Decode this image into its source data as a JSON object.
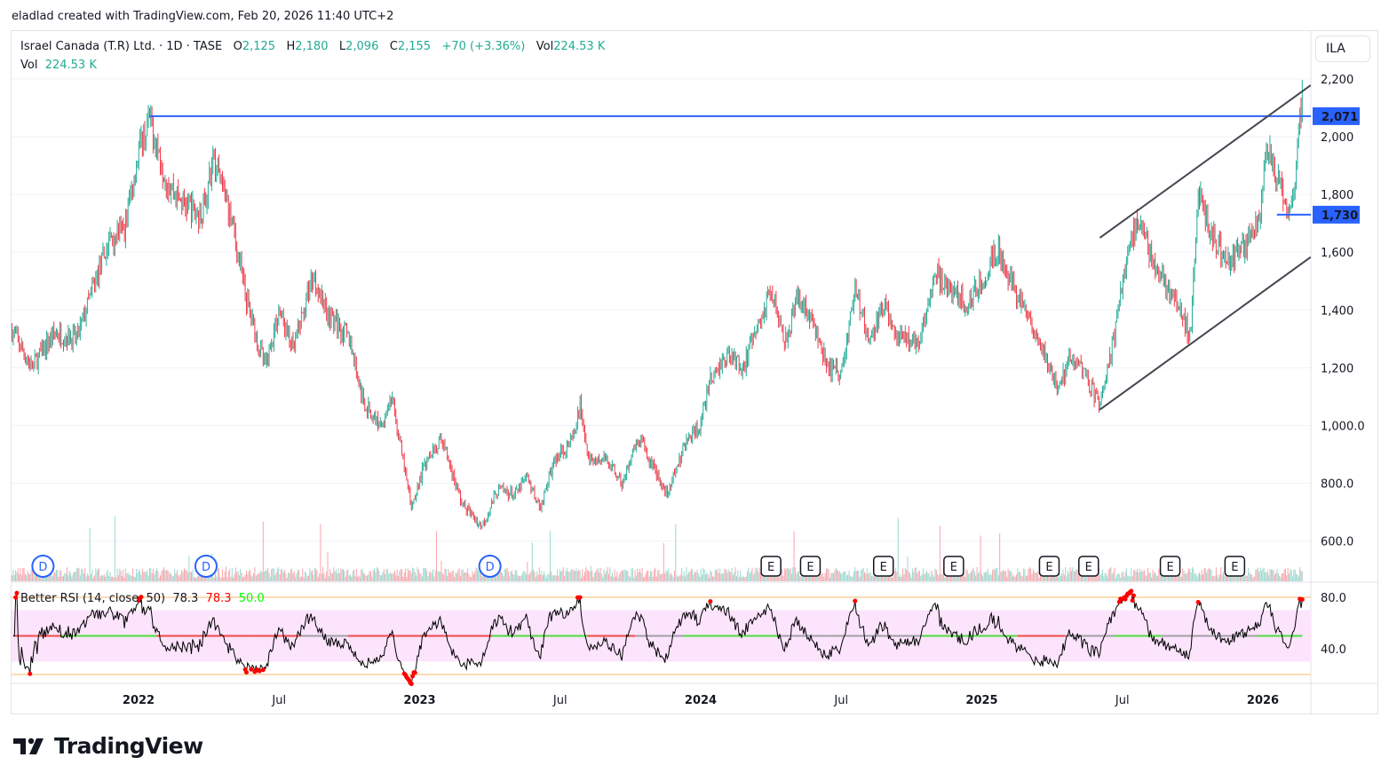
{
  "credit": "eladlad created with TradingView.com, Feb 20, 2026 11:40 UTC+2",
  "legend": {
    "symbol": "Israel Canada (T.R) Ltd. · 1D · TASE",
    "o_label": "O",
    "o": "2,125",
    "h_label": "H",
    "h": "2,180",
    "l_label": "L",
    "l": "2,096",
    "c_label": "C",
    "c": "2,155",
    "change": "+70 (+3.36%)",
    "vol_label": "Vol",
    "vol": "224.53 K"
  },
  "vol_legend": {
    "label": "Vol",
    "value": "224.53 K"
  },
  "rsi_legend": {
    "name": "Better RSI (14, close, 50)",
    "v1": "78.3",
    "v2": "78.3",
    "v3": "50.0"
  },
  "currency": "ILA",
  "logo": "TradingView",
  "colors": {
    "up": "#22ab94",
    "down": "#f23645",
    "line": "#2962ff",
    "trend": "#434651"
  },
  "chart_data": {
    "type": "candlestick",
    "title": "Israel Canada (T.R) Ltd. · 1D · TASE",
    "ylim": [
      500,
      2260
    ],
    "y_ticks": [
      "2,200",
      "2,000",
      "1,800",
      "1,600",
      "1,400",
      "1,200",
      "1,000.0",
      "800.0",
      "600.0"
    ],
    "y_tick_values": [
      2200,
      2000,
      1800,
      1600,
      1400,
      1200,
      1000,
      800,
      600
    ],
    "x_ticks": [
      {
        "label": "2022",
        "t": 2022.0,
        "bold": true
      },
      {
        "label": "Jul",
        "t": 2022.5
      },
      {
        "label": "2023",
        "t": 2023.0,
        "bold": true
      },
      {
        "label": "Jul",
        "t": 2023.5
      },
      {
        "label": "2024",
        "t": 2024.0,
        "bold": true
      },
      {
        "label": "Jul",
        "t": 2024.5
      },
      {
        "label": "2025",
        "t": 2025.0,
        "bold": true
      },
      {
        "label": "Jul",
        "t": 2025.5
      },
      {
        "label": "2026",
        "t": 2026.0,
        "bold": true
      }
    ],
    "price_path": [
      [
        2021.55,
        1330
      ],
      [
        2021.62,
        1200
      ],
      [
        2021.7,
        1320
      ],
      [
        2021.78,
        1300
      ],
      [
        2021.83,
        1450
      ],
      [
        2021.9,
        1650
      ],
      [
        2021.95,
        1680
      ],
      [
        2022.0,
        1950
      ],
      [
        2022.04,
        2060
      ],
      [
        2022.1,
        1850
      ],
      [
        2022.15,
        1780
      ],
      [
        2022.22,
        1720
      ],
      [
        2022.27,
        1920
      ],
      [
        2022.33,
        1720
      ],
      [
        2022.38,
        1450
      ],
      [
        2022.45,
        1200
      ],
      [
        2022.5,
        1400
      ],
      [
        2022.55,
        1260
      ],
      [
        2022.62,
        1520
      ],
      [
        2022.68,
        1380
      ],
      [
        2022.75,
        1300
      ],
      [
        2022.8,
        1080
      ],
      [
        2022.86,
        1000
      ],
      [
        2022.9,
        1100
      ],
      [
        2022.97,
        720
      ],
      [
        2023.03,
        900
      ],
      [
        2023.08,
        950
      ],
      [
        2023.15,
        730
      ],
      [
        2023.22,
        650
      ],
      [
        2023.28,
        780
      ],
      [
        2023.34,
        760
      ],
      [
        2023.38,
        820
      ],
      [
        2023.43,
        720
      ],
      [
        2023.48,
        880
      ],
      [
        2023.55,
        960
      ],
      [
        2023.57,
        1080
      ],
      [
        2023.6,
        880
      ],
      [
        2023.67,
        880
      ],
      [
        2023.72,
        800
      ],
      [
        2023.78,
        950
      ],
      [
        2023.82,
        880
      ],
      [
        2023.88,
        760
      ],
      [
        2023.95,
        950
      ],
      [
        2024.0,
        1000
      ],
      [
        2024.03,
        1150
      ],
      [
        2024.1,
        1250
      ],
      [
        2024.15,
        1200
      ],
      [
        2024.22,
        1380
      ],
      [
        2024.25,
        1480
      ],
      [
        2024.3,
        1300
      ],
      [
        2024.35,
        1450
      ],
      [
        2024.4,
        1350
      ],
      [
        2024.45,
        1200
      ],
      [
        2024.5,
        1180
      ],
      [
        2024.55,
        1480
      ],
      [
        2024.6,
        1280
      ],
      [
        2024.65,
        1420
      ],
      [
        2024.7,
        1300
      ],
      [
        2024.78,
        1300
      ],
      [
        2024.83,
        1530
      ],
      [
        2024.9,
        1450
      ],
      [
        2024.95,
        1420
      ],
      [
        2025.02,
        1540
      ],
      [
        2025.06,
        1620
      ],
      [
        2025.1,
        1500
      ],
      [
        2025.15,
        1400
      ],
      [
        2025.2,
        1300
      ],
      [
        2025.27,
        1120
      ],
      [
        2025.32,
        1250
      ],
      [
        2025.38,
        1150
      ],
      [
        2025.42,
        1070
      ],
      [
        2025.47,
        1300
      ],
      [
        2025.52,
        1620
      ],
      [
        2025.56,
        1700
      ],
      [
        2025.62,
        1550
      ],
      [
        2025.68,
        1450
      ],
      [
        2025.74,
        1300
      ],
      [
        2025.77,
        1820
      ],
      [
        2025.82,
        1650
      ],
      [
        2025.88,
        1560
      ],
      [
        2025.93,
        1620
      ],
      [
        2025.99,
        1700
      ],
      [
        2026.01,
        1990
      ],
      [
        2026.05,
        1850
      ],
      [
        2026.09,
        1730
      ],
      [
        2026.12,
        1900
      ],
      [
        2026.14,
        2155
      ]
    ],
    "horizontal_lines": [
      {
        "price": 2071,
        "label": "2,071",
        "from": 2022.04
      },
      {
        "price": 1730,
        "label": "1,730",
        "from": 2026.05
      }
    ],
    "trend_lines": [
      {
        "from": [
          2025.42,
          1650
        ],
        "to": [
          2026.17,
          2178
        ]
      },
      {
        "from": [
          2025.42,
          1055
        ],
        "to": [
          2026.17,
          1583
        ]
      }
    ],
    "events": [
      {
        "type": "D",
        "t": 2021.66
      },
      {
        "type": "D",
        "t": 2022.24
      },
      {
        "type": "D",
        "t": 2023.25
      },
      {
        "type": "E",
        "t": 2024.25
      },
      {
        "type": "E",
        "t": 2024.39
      },
      {
        "type": "E",
        "t": 2024.65
      },
      {
        "type": "E",
        "t": 2024.9
      },
      {
        "type": "E",
        "t": 2025.24
      },
      {
        "type": "E",
        "t": 2025.38
      },
      {
        "type": "E",
        "t": 2025.67
      },
      {
        "type": "E",
        "t": 2025.9
      }
    ],
    "rsi": {
      "levels": [
        80,
        40
      ],
      "level_labels": [
        "80.0",
        "40.0"
      ],
      "band": [
        30,
        70
      ],
      "mid": 50,
      "bounds": [
        20,
        80
      ],
      "last": 78.3
    }
  }
}
